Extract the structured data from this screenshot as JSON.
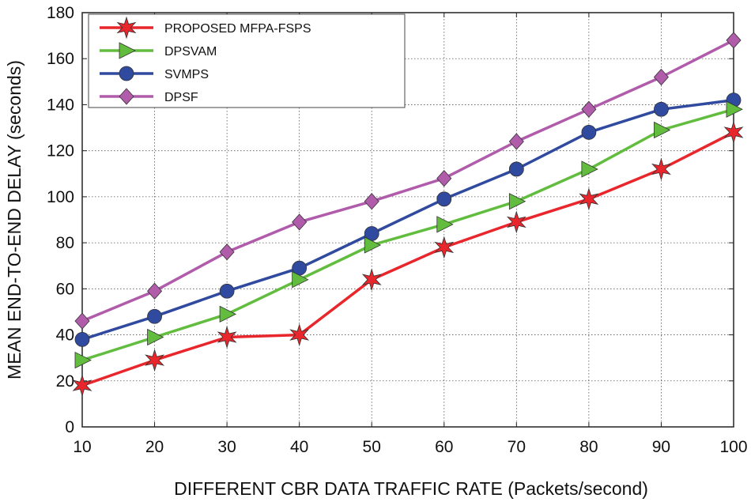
{
  "chart_data": {
    "type": "line",
    "title": "",
    "xlabel": "DIFFERENT CBR DATA TRAFFIC RATE (Packets/second)",
    "ylabel": "MEAN END-TO-END DELAY (seconds)",
    "x": [
      10,
      20,
      30,
      40,
      50,
      60,
      70,
      80,
      90,
      100
    ],
    "xlim": [
      10,
      100
    ],
    "ylim": [
      0,
      180
    ],
    "xticks": [
      "10",
      "20",
      "30",
      "40",
      "50",
      "60",
      "70",
      "80",
      "90",
      "100"
    ],
    "yticks": [
      "0",
      "20",
      "40",
      "60",
      "80",
      "100",
      "120",
      "140",
      "160",
      "180"
    ],
    "grid": true,
    "legend_position": "top-left",
    "series": [
      {
        "name": "PROPOSED MFPA-FSPS",
        "color": "#e8262b",
        "marker": "star",
        "values": [
          18,
          29,
          39,
          40,
          64,
          78,
          89,
          99,
          112,
          128
        ]
      },
      {
        "name": "DPSVAM",
        "color": "#62bd3f",
        "marker": "triangle-right",
        "values": [
          29,
          39,
          49,
          64,
          79,
          88,
          98,
          112,
          129,
          138
        ]
      },
      {
        "name": "SVMPS",
        "color": "#2f4a9e",
        "marker": "circle",
        "values": [
          38,
          48,
          59,
          69,
          84,
          99,
          112,
          128,
          138,
          142
        ]
      },
      {
        "name": "DPSF",
        "color": "#b05cab",
        "marker": "diamond",
        "values": [
          46,
          59,
          76,
          89,
          98,
          108,
          124,
          138,
          152,
          168
        ]
      }
    ]
  }
}
